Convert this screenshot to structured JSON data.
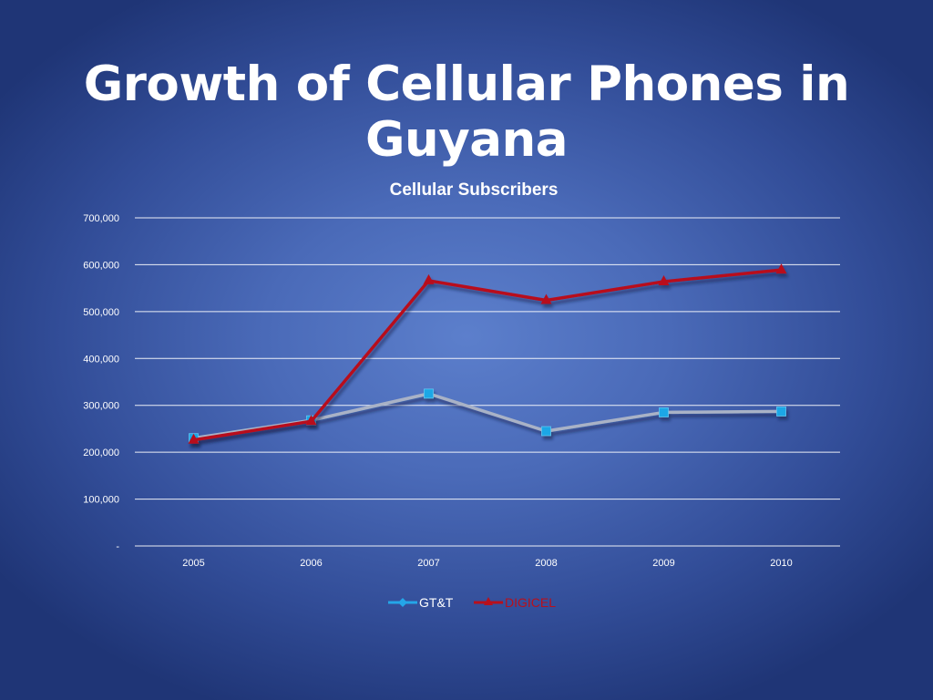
{
  "slide": {
    "title": "Growth of Cellular Phones in Guyana"
  },
  "colors": {
    "gtt_line": "#a9b2c6",
    "gtt_marker": "#1ea7e6",
    "gtt_legend": "#24a6e8",
    "digicel": "#b8101c",
    "gridline": "#ffffff",
    "text": "#ffffff"
  },
  "chart_data": {
    "type": "line",
    "title": "Cellular Subscribers",
    "xlabel": "",
    "ylabel": "",
    "categories": [
      "2005",
      "2006",
      "2007",
      "2008",
      "2009",
      "2010"
    ],
    "ylim": [
      0,
      700000
    ],
    "yticks": [
      0,
      100000,
      200000,
      300000,
      400000,
      500000,
      600000,
      700000
    ],
    "ytick_labels": [
      "-",
      "100,000",
      "200,000",
      "300,000",
      "400,000",
      "500,000",
      "600,000",
      "700,000"
    ],
    "grid": true,
    "legend_position": "bottom",
    "series": [
      {
        "name": "GT&T",
        "marker": "square",
        "values": [
          230000,
          268000,
          325000,
          245000,
          285000,
          287000
        ]
      },
      {
        "name": "DIGICEL",
        "marker": "triangle",
        "values": [
          226000,
          266000,
          566000,
          524000,
          564000,
          589000
        ]
      }
    ]
  }
}
